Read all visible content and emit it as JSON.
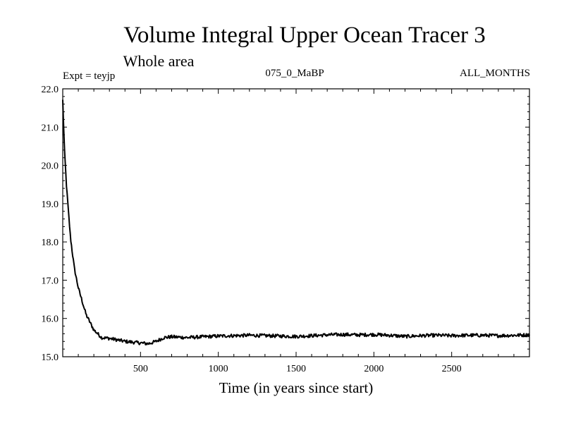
{
  "chart_data": {
    "type": "line",
    "title": "Volume Integral Upper Ocean Tracer 3",
    "subtitle": "Whole area",
    "annotation_left": "Expt = teyjp",
    "annotation_center": "075_0_MaBP",
    "annotation_right": "ALL_MONTHS",
    "xlabel": "Time (in years since start)",
    "ylabel": "",
    "xlim": [
      0,
      3000
    ],
    "ylim": [
      15.0,
      22.0
    ],
    "xticks": [
      500,
      1000,
      1500,
      2000,
      2500
    ],
    "xtick_labels": [
      "500",
      "1000",
      "1500",
      "2000",
      "2500"
    ],
    "yticks": [
      15.0,
      16.0,
      17.0,
      18.0,
      19.0,
      20.0,
      21.0,
      22.0
    ],
    "ytick_labels": [
      "15.0",
      "16.0",
      "17.0",
      "18.0",
      "19.0",
      "20.0",
      "21.0",
      "22.0"
    ],
    "grid": false,
    "series": [
      {
        "name": "Volume Integral Upper Ocean Tracer 3",
        "x": [
          0,
          10,
          25,
          50,
          75,
          100,
          150,
          200,
          250,
          300,
          350,
          400,
          450,
          500,
          550,
          600,
          650,
          700,
          800,
          900,
          1000,
          1100,
          1200,
          1300,
          1400,
          1500,
          1600,
          1700,
          1800,
          1900,
          2000,
          2100,
          2200,
          2300,
          2400,
          2500,
          2600,
          2700,
          2800,
          2900,
          3000
        ],
        "y": [
          21.7,
          20.5,
          19.4,
          18.1,
          17.3,
          16.8,
          16.1,
          15.7,
          15.5,
          15.48,
          15.44,
          15.4,
          15.38,
          15.36,
          15.34,
          15.4,
          15.5,
          15.52,
          15.5,
          15.52,
          15.54,
          15.55,
          15.56,
          15.55,
          15.54,
          15.53,
          15.55,
          15.57,
          15.58,
          15.57,
          15.58,
          15.56,
          15.53,
          15.55,
          15.56,
          15.55,
          15.56,
          15.56,
          15.55,
          15.56,
          15.57
        ]
      }
    ]
  }
}
